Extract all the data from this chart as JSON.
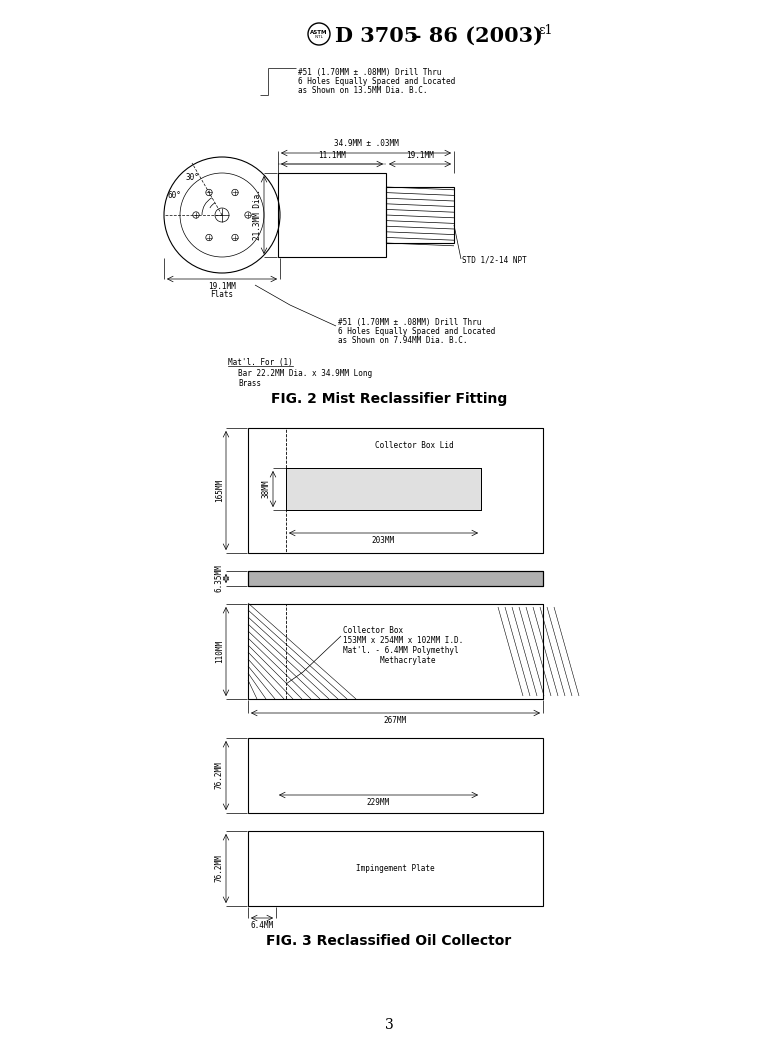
{
  "title": "D 3705 – 86 (2003)ε¹",
  "page_number": "3",
  "background_color": "#ffffff",
  "line_color": "#000000",
  "fig2_title": "FIG. 2 Mist Reclassifier Fitting",
  "fig3_title": "FIG. 3 Reclassified Oil Collector",
  "note1_line1": "#51 (1.70MM ± .08MM) Drill Thru",
  "note1_line2": "6 Holes Equally Spaced and Located",
  "note1_line3": "as Shown on 13.5MM Dia. B.C.",
  "note2_line1": "#51 (1.70MM ± .08MM) Drill Thru",
  "note2_line2": "6 Holes Equally Spaced and Located",
  "note2_line3": "as Shown on 7.94MM Dia. B.C.",
  "mat_note1": "Mat'l. For (1)",
  "mat_note2": "Bar 22.2MM Dia. x 34.9MM Long",
  "mat_note3": "Brass",
  "dim_34_9": "34.9MM ± .03MM",
  "dim_11_1": "11.1MM",
  "dim_19_1_top": "19.1MM",
  "dim_21_3": "21.3MM Dia.",
  "dim_19_1_bot_1": "19.1MM",
  "dim_19_1_bot_2": "Flats",
  "dim_std": "STD 1/2-14 NPT",
  "dim_60": "60°",
  "dim_30": "30°",
  "collector_box_lid": "Collector Box Lid",
  "dim_165": "165MM",
  "dim_38": "38MM",
  "dim_203": "203MM",
  "dim_6_35": "6.35MM",
  "collector_box_text1": "Collector Box",
  "collector_box_text2": "153MM x 254MM x 102MM I.D.",
  "collector_box_text3": "Mat'l. - 6.4MM Polymethyl",
  "collector_box_text4": "        Methacrylate",
  "dim_110": "110MM",
  "dim_267": "267MM",
  "dim_76_2_top": "76.2MM",
  "dim_229": "229MM",
  "dim_76_2_bot": "76.2MM",
  "impingement": "Impingement Plate",
  "dim_6_4": "6.4MM"
}
